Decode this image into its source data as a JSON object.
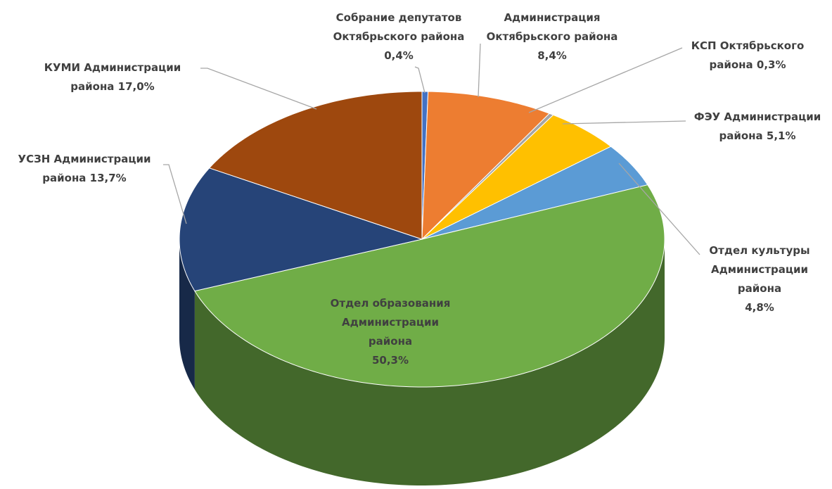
{
  "chart_data": {
    "type": "pie",
    "categories": [
      "Собрание депутатов Октябрьского района",
      "Администрация Октябрьского района",
      "КСП Октябрьского района",
      "ФЭУ Администрации района",
      "Отдел культуры Администрации района",
      "Отдел образования Администрации района",
      "УСЗН Администрации района",
      "КУМИ Администрации района"
    ],
    "values": [
      0.4,
      8.4,
      0.3,
      5.1,
      4.8,
      50.3,
      13.7,
      17.0
    ],
    "value_labels": [
      "0,4%",
      "8,4%",
      "0,3%",
      "5,1%",
      "4,8%",
      "50,3%",
      "13,7%",
      "17,0%"
    ],
    "colors": [
      "#4472c4",
      "#ed7d31",
      "#a5a5a5",
      "#ffc000",
      "#5b9bd5",
      "#70ad47",
      "#264478",
      "#9e480e"
    ]
  }
}
